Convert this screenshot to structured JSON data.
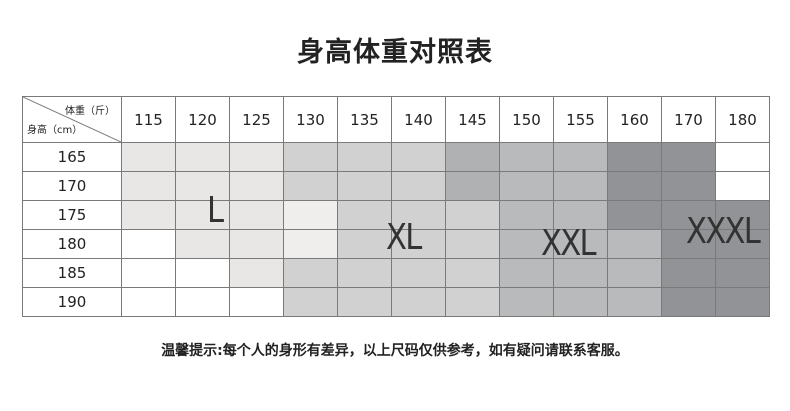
{
  "title": "身高体重对照表",
  "corner": {
    "weight_label": "体重（斤）",
    "height_label": "身高（cm）"
  },
  "weights": [
    "115",
    "120",
    "125",
    "130",
    "135",
    "140",
    "145",
    "150",
    "155",
    "160",
    "170",
    "180"
  ],
  "heights": [
    "165",
    "170",
    "175",
    "180",
    "185",
    "190"
  ],
  "colors": {
    "w": "#ffffff",
    "l": "#e8e7e5",
    "l2": "#efeeec",
    "x": "#d1d1d1",
    "2b": "#b0b1b3",
    "2": "#b9babc",
    "3": "#929396"
  },
  "grid": [
    [
      "l",
      "l",
      "l",
      "x",
      "x",
      "x",
      "2b",
      "2",
      "2",
      "3",
      "3",
      "w"
    ],
    [
      "l",
      "l",
      "l",
      "x",
      "x",
      "x",
      "2b",
      "2",
      "2",
      "3",
      "3",
      "w"
    ],
    [
      "l",
      "l",
      "l",
      "l2",
      "x",
      "x",
      "x",
      "2",
      "2",
      "3",
      "3",
      "3"
    ],
    [
      "w",
      "l",
      "l",
      "l2",
      "x",
      "x",
      "x",
      "2",
      "2",
      "2",
      "3",
      "3"
    ],
    [
      "w",
      "w",
      "l",
      "x",
      "x",
      "x",
      "x",
      "2",
      "2",
      "2",
      "3",
      "3"
    ],
    [
      "w",
      "w",
      "w",
      "x",
      "x",
      "x",
      "x",
      "2",
      "2",
      "2",
      "3",
      "3"
    ]
  ],
  "sizes": {
    "L": "L",
    "XL": "XL",
    "XXL": "XXL",
    "XXXL": "XXXL"
  },
  "note": "温馨提示:每个人的身形有差异，以上尺码仅供参考，如有疑问请联系客服。"
}
